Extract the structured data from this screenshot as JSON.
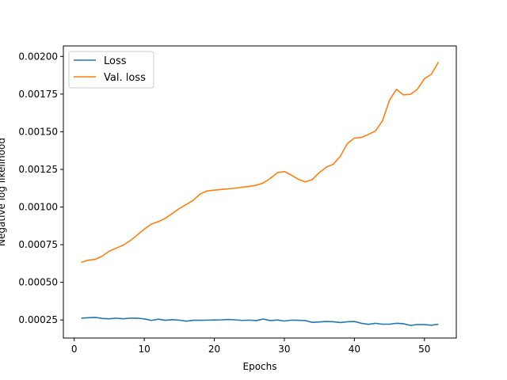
{
  "chart_data": {
    "type": "line",
    "title": "",
    "xlabel": "Epochs",
    "ylabel": "Negative log likelihood",
    "xlim": [
      -1.55,
      54.55
    ],
    "ylim": [
      0.00013,
      0.00207
    ],
    "x_ticks": [
      0,
      10,
      20,
      30,
      40,
      50
    ],
    "x_tick_labels": [
      "0",
      "10",
      "20",
      "30",
      "40",
      "50"
    ],
    "y_ticks": [
      0.00025,
      0.0005,
      0.00075,
      0.001,
      0.00125,
      0.0015,
      0.00175,
      0.002
    ],
    "y_tick_labels": [
      "0.00025",
      "0.00050",
      "0.00075",
      "0.00100",
      "0.00125",
      "0.00150",
      "0.00175",
      "0.00200"
    ],
    "grid": false,
    "legend_position": "upper-left",
    "x": [
      1,
      2,
      3,
      4,
      5,
      6,
      7,
      8,
      9,
      10,
      11,
      12,
      13,
      14,
      15,
      16,
      17,
      18,
      19,
      20,
      21,
      22,
      23,
      24,
      25,
      26,
      27,
      28,
      29,
      30,
      31,
      32,
      33,
      34,
      35,
      36,
      37,
      38,
      39,
      40,
      41,
      42,
      43,
      44,
      45,
      46,
      47,
      48,
      49,
      50,
      51,
      52
    ],
    "series": [
      {
        "name": "Loss",
        "color": "#1f77b4",
        "values": [
          0.000262,
          0.000265,
          0.000267,
          0.00026,
          0.000258,
          0.000262,
          0.000258,
          0.000262,
          0.000262,
          0.000257,
          0.000247,
          0.000255,
          0.000248,
          0.000252,
          0.000249,
          0.000242,
          0.000248,
          0.000248,
          0.000249,
          0.00025,
          0.000251,
          0.000253,
          0.000251,
          0.000247,
          0.000249,
          0.000246,
          0.000256,
          0.000246,
          0.00025,
          0.000243,
          0.000249,
          0.000248,
          0.000246,
          0.000234,
          0.000237,
          0.00024,
          0.000238,
          0.000233,
          0.000238,
          0.00024,
          0.000228,
          0.000221,
          0.000228,
          0.000222,
          0.000222,
          0.000228,
          0.000225,
          0.000214,
          0.00022,
          0.000219,
          0.000215,
          0.000222
        ]
      },
      {
        "name": "Val. loss",
        "color": "#ff7f0e",
        "values": [
          0.000633,
          0.000647,
          0.000653,
          0.000674,
          0.000707,
          0.000727,
          0.000747,
          0.000777,
          0.000815,
          0.000853,
          0.000887,
          0.000903,
          0.000925,
          0.000957,
          0.00099,
          0.001017,
          0.001045,
          0.001087,
          0.001107,
          0.001112,
          0.001117,
          0.001121,
          0.001125,
          0.001132,
          0.001137,
          0.001145,
          0.00116,
          0.00119,
          0.001228,
          0.001236,
          0.001212,
          0.001184,
          0.001167,
          0.001183,
          0.001229,
          0.001265,
          0.001285,
          0.001338,
          0.001422,
          0.001458,
          0.001462,
          0.001482,
          0.001505,
          0.001572,
          0.001708,
          0.001782,
          0.001745,
          0.001748,
          0.001783,
          0.001852,
          0.001882,
          0.001963
        ]
      }
    ]
  }
}
